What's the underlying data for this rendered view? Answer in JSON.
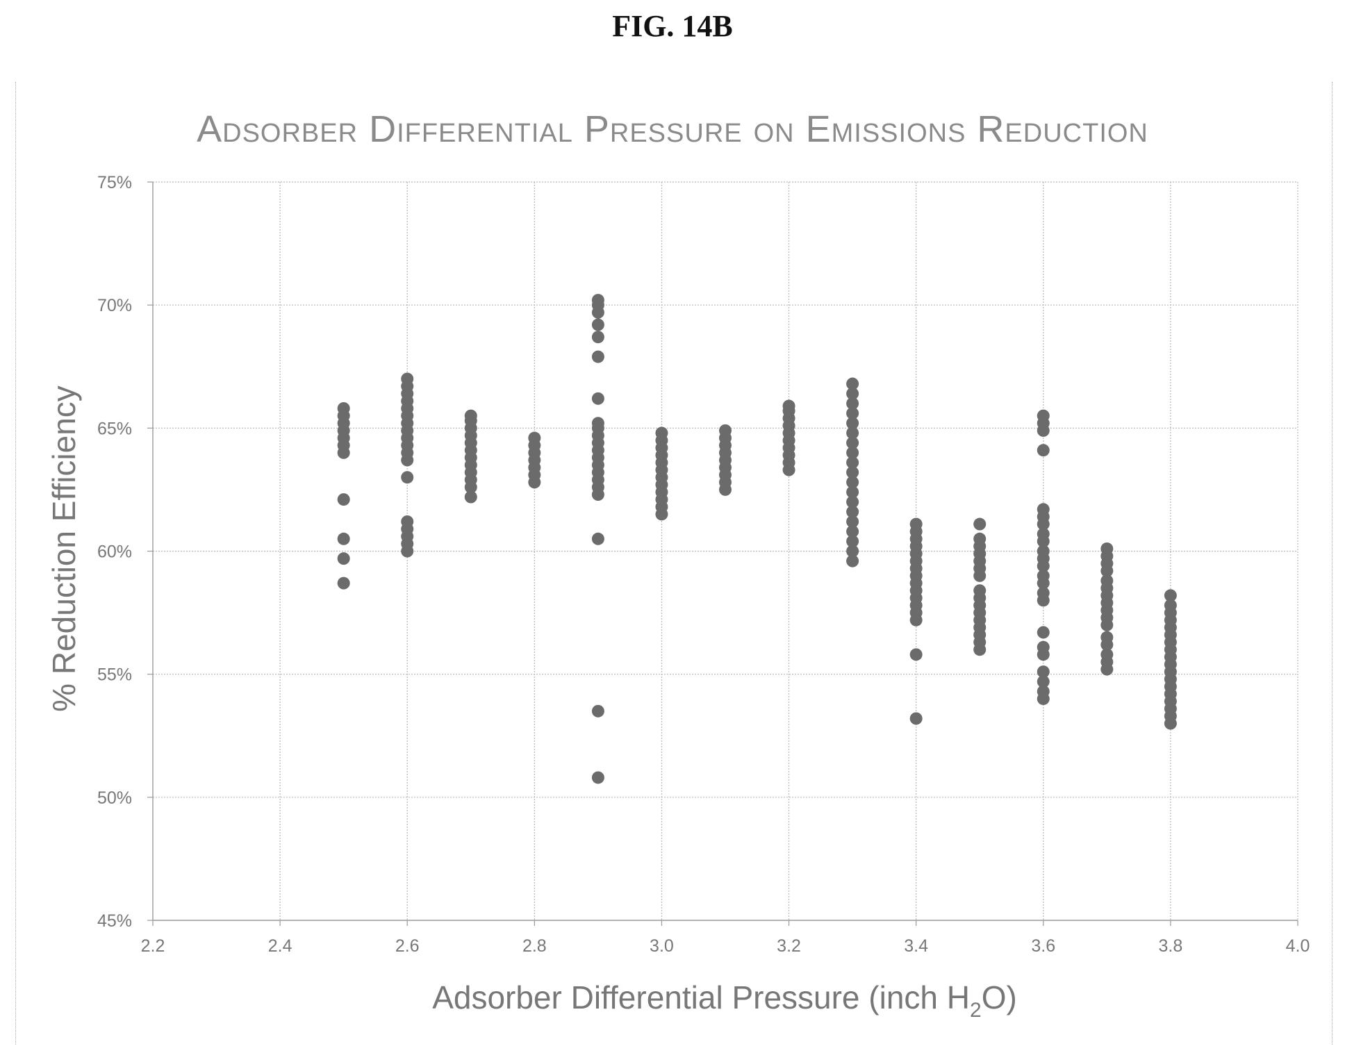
{
  "figure_label": "FIG. 14B",
  "chart_data": {
    "type": "scatter",
    "title": "Adsorber Differential Pressure on Emissions Reduction",
    "xlabel_parts": [
      "Adsorber Differential Pressure (inch H",
      "2",
      "O)"
    ],
    "ylabel": "% Reduction Efficiency",
    "xlim": [
      2.2,
      4.0
    ],
    "ylim": [
      0.45,
      0.75
    ],
    "x_ticks": [
      "2.2",
      "2.4",
      "2.6",
      "2.8",
      "3.0",
      "3.2",
      "3.4",
      "3.6",
      "3.8",
      "4.0"
    ],
    "x_tick_values": [
      2.2,
      2.4,
      2.6,
      2.8,
      3.0,
      3.2,
      3.4,
      3.6,
      3.8,
      4.0
    ],
    "y_ticks": [
      "45%",
      "50%",
      "55%",
      "60%",
      "65%",
      "70%",
      "75%"
    ],
    "y_tick_values": [
      0.45,
      0.5,
      0.55,
      0.6,
      0.65,
      0.7,
      0.75
    ],
    "grid": true,
    "marker_color": "#6b6b6b",
    "points": [
      {
        "x": 2.5,
        "y": [
          0.587,
          0.597,
          0.605,
          0.621,
          0.64,
          0.643,
          0.646,
          0.649,
          0.652,
          0.655,
          0.658
        ]
      },
      {
        "x": 2.6,
        "y": [
          0.6,
          0.603,
          0.606,
          0.609,
          0.612,
          0.63,
          0.637,
          0.64,
          0.643,
          0.646,
          0.649,
          0.652,
          0.655,
          0.658,
          0.661,
          0.664,
          0.667,
          0.67
        ]
      },
      {
        "x": 2.7,
        "y": [
          0.622,
          0.626,
          0.629,
          0.632,
          0.635,
          0.638,
          0.641,
          0.644,
          0.647,
          0.65,
          0.653,
          0.655
        ]
      },
      {
        "x": 2.8,
        "y": [
          0.628,
          0.631,
          0.634,
          0.637,
          0.64,
          0.643,
          0.646
        ]
      },
      {
        "x": 2.9,
        "y": [
          0.508,
          0.535,
          0.605,
          0.623,
          0.626,
          0.629,
          0.632,
          0.635,
          0.638,
          0.641,
          0.644,
          0.647,
          0.65,
          0.652,
          0.662,
          0.679,
          0.687,
          0.692,
          0.697,
          0.7,
          0.702
        ]
      },
      {
        "x": 3.0,
        "y": [
          0.615,
          0.618,
          0.621,
          0.624,
          0.627,
          0.63,
          0.633,
          0.636,
          0.639,
          0.642,
          0.645,
          0.648
        ]
      },
      {
        "x": 3.1,
        "y": [
          0.625,
          0.628,
          0.631,
          0.634,
          0.637,
          0.64,
          0.643,
          0.646,
          0.649
        ]
      },
      {
        "x": 3.2,
        "y": [
          0.633,
          0.636,
          0.639,
          0.642,
          0.645,
          0.648,
          0.651,
          0.654,
          0.657,
          0.659
        ]
      },
      {
        "x": 3.3,
        "y": [
          0.596,
          0.6,
          0.604,
          0.608,
          0.612,
          0.616,
          0.62,
          0.624,
          0.628,
          0.632,
          0.636,
          0.64,
          0.644,
          0.648,
          0.652,
          0.656,
          0.66,
          0.664,
          0.668
        ]
      },
      {
        "x": 3.4,
        "y": [
          0.532,
          0.558,
          0.572,
          0.575,
          0.578,
          0.581,
          0.584,
          0.587,
          0.59,
          0.593,
          0.596,
          0.599,
          0.602,
          0.605,
          0.608,
          0.611
        ]
      },
      {
        "x": 3.5,
        "y": [
          0.56,
          0.563,
          0.566,
          0.569,
          0.572,
          0.575,
          0.578,
          0.581,
          0.584,
          0.59,
          0.593,
          0.596,
          0.599,
          0.602,
          0.605,
          0.611
        ]
      },
      {
        "x": 3.6,
        "y": [
          0.54,
          0.543,
          0.547,
          0.551,
          0.558,
          0.561,
          0.567,
          0.58,
          0.583,
          0.587,
          0.59,
          0.594,
          0.597,
          0.6,
          0.604,
          0.607,
          0.611,
          0.614,
          0.617,
          0.641,
          0.649,
          0.652,
          0.655
        ]
      },
      {
        "x": 3.7,
        "y": [
          0.552,
          0.555,
          0.558,
          0.562,
          0.565,
          0.57,
          0.573,
          0.576,
          0.579,
          0.582,
          0.585,
          0.588,
          0.592,
          0.595,
          0.598,
          0.601
        ]
      },
      {
        "x": 3.8,
        "y": [
          0.53,
          0.533,
          0.536,
          0.539,
          0.542,
          0.545,
          0.548,
          0.551,
          0.554,
          0.557,
          0.56,
          0.563,
          0.566,
          0.569,
          0.572,
          0.575,
          0.578,
          0.582
        ]
      }
    ]
  }
}
